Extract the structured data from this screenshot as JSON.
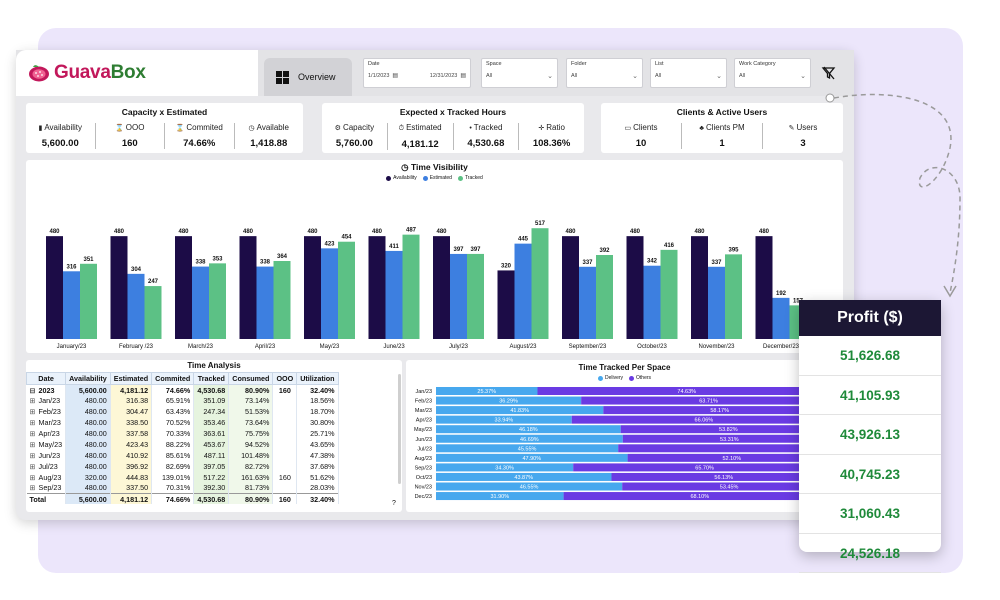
{
  "app": {
    "logo_prefix": "Guava",
    "logo_suffix": "Box",
    "tab_overview": "Overview"
  },
  "filters": {
    "date": {
      "label": "Date",
      "start": "1/1/2023",
      "end": "12/31/2023"
    },
    "space": {
      "label": "Space",
      "value": "All"
    },
    "folder": {
      "label": "Folder",
      "value": "All"
    },
    "list": {
      "label": "List",
      "value": "All"
    },
    "work_category": {
      "label": "Work Category",
      "value": "All"
    }
  },
  "capacity": {
    "title": "Capacity x Estimated",
    "kpis": [
      {
        "icon": "bar-chart-icon",
        "glyph": "▮",
        "label": "Availability",
        "value": "5,600.00"
      },
      {
        "icon": "hourglass-icon",
        "glyph": "⌛",
        "label": "OOO",
        "value": "160"
      },
      {
        "icon": "hourglass-icon",
        "glyph": "⌛",
        "label": "Commited",
        "value": "74.66%"
      },
      {
        "icon": "clock-icon",
        "glyph": "◷",
        "label": "Available",
        "value": "1,418.88"
      }
    ]
  },
  "expected": {
    "title": "Expected x Tracked Hours",
    "kpis": [
      {
        "icon": "gear-icon",
        "glyph": "⚙",
        "label": "Capacity",
        "value": "5,760.00"
      },
      {
        "icon": "stopwatch-icon",
        "glyph": "⏱",
        "label": "Estimated",
        "value": "4,181.12"
      },
      {
        "icon": "dot-icon",
        "glyph": "•",
        "label": "Tracked",
        "value": "4,530.68"
      },
      {
        "icon": "plus-icon",
        "glyph": "✛",
        "label": "Ratio",
        "value": "108.36%"
      }
    ]
  },
  "clients": {
    "title": "Clients & Active Users",
    "kpis": [
      {
        "icon": "cart-icon",
        "glyph": "▭",
        "label": "Clients",
        "value": "10"
      },
      {
        "icon": "person-icon",
        "glyph": "♣",
        "label": "Clients PM",
        "value": "1"
      },
      {
        "icon": "pin-icon",
        "glyph": "✎",
        "label": "Users",
        "value": "3"
      }
    ]
  },
  "time_visibility": {
    "title": "Time Visibility",
    "legend": [
      "Availability",
      "Estimated",
      "Tracked"
    ]
  },
  "chart_data": [
    {
      "type": "bar",
      "title": "Time Visibility",
      "legend_position": "top-center",
      "categories": [
        "January/23",
        "February /23",
        "March/23",
        "April/23",
        "May/23",
        "June/23",
        "July/23",
        "August/23",
        "September/23",
        "October/23",
        "November/23",
        "December/23"
      ],
      "series": [
        {
          "name": "Availability",
          "color": "#1c0c47",
          "values": [
            480,
            480,
            480,
            480,
            480,
            480,
            480,
            320,
            480,
            480,
            480,
            480
          ]
        },
        {
          "name": "Estimated",
          "color": "#3d7fe0",
          "values": [
            316,
            304,
            338,
            338,
            423,
            411,
            397,
            445,
            337,
            342,
            337,
            192
          ]
        },
        {
          "name": "Tracked",
          "color": "#5cc185",
          "values": [
            351,
            247,
            353,
            364,
            454,
            487,
            397,
            517,
            392,
            416,
            395,
            157
          ]
        }
      ],
      "ylim": [
        0,
        560
      ]
    },
    {
      "type": "bar",
      "orientation": "horizontal-stacked-100",
      "title": "Time Tracked Per Space",
      "legend_position": "top-center",
      "categories": [
        "Jan/23",
        "Feb/23",
        "Mar/23",
        "Apr/23",
        "May/23",
        "Jun/23",
        "Jul/23",
        "Aug/23",
        "Sep/23",
        "Oct/23",
        "Nov/23",
        "Dec/23"
      ],
      "series": [
        {
          "name": "Delivery",
          "color": "#47a8ee",
          "values": [
            25.37,
            36.29,
            41.83,
            33.94,
            46.18,
            46.69,
            45.55,
            47.9,
            34.3,
            43.87,
            46.55,
            31.9
          ]
        },
        {
          "name": "Others",
          "color": "#6a3be3",
          "values": [
            74.63,
            63.71,
            58.17,
            66.06,
            53.82,
            53.31,
            54.45,
            52.1,
            65.7,
            56.13,
            53.45,
            68.1
          ]
        }
      ],
      "labels_delivery": [
        "25.37%",
        "36.29%",
        "41.83%",
        "33.94%",
        "46.18%",
        "46.69%",
        "45.55%",
        "47.90%",
        "34.30%",
        "43.87%",
        "46.55%",
        "31.90%"
      ],
      "labels_others": [
        "74.63%",
        "63.71%",
        "58.17%",
        "66.06%",
        "53.82%",
        "53.31%",
        "",
        "52.10%",
        "65.70%",
        "56.13%",
        "53.45%",
        "68.10%"
      ]
    }
  ],
  "time_analysis": {
    "title": "Time Analysis",
    "columns": [
      "Date",
      "Availability",
      "Estimated",
      "Commited",
      "Tracked",
      "Consumed",
      "OOO",
      "Utilization"
    ],
    "rows": [
      {
        "date": "2023",
        "cells": [
          "5,600.00",
          "4,181.12",
          "74.66%",
          "4,530.68",
          "80.90%",
          "160",
          "32.40%"
        ],
        "bold": true,
        "expand": "⊟"
      },
      {
        "date": "Jan/23",
        "cells": [
          "480.00",
          "316.38",
          "65.91%",
          "351.09",
          "73.14%",
          "",
          "18.56%"
        ],
        "bold": false,
        "expand": "⊞"
      },
      {
        "date": "Feb/23",
        "cells": [
          "480.00",
          "304.47",
          "63.43%",
          "247.34",
          "51.53%",
          "",
          "18.70%"
        ],
        "bold": false,
        "expand": "⊞"
      },
      {
        "date": "Mar/23",
        "cells": [
          "480.00",
          "338.50",
          "70.52%",
          "353.46",
          "73.64%",
          "",
          "30.80%"
        ],
        "bold": false,
        "expand": "⊞"
      },
      {
        "date": "Apr/23",
        "cells": [
          "480.00",
          "337.58",
          "70.33%",
          "363.61",
          "75.75%",
          "",
          "25.71%"
        ],
        "bold": false,
        "expand": "⊞"
      },
      {
        "date": "May/23",
        "cells": [
          "480.00",
          "423.43",
          "88.22%",
          "453.67",
          "94.52%",
          "",
          "43.65%"
        ],
        "bold": false,
        "expand": "⊞"
      },
      {
        "date": "Jun/23",
        "cells": [
          "480.00",
          "410.92",
          "85.61%",
          "487.11",
          "101.48%",
          "",
          "47.38%"
        ],
        "bold": false,
        "expand": "⊞"
      },
      {
        "date": "Jul/23",
        "cells": [
          "480.00",
          "396.92",
          "82.69%",
          "397.05",
          "82.72%",
          "",
          "37.68%"
        ],
        "bold": false,
        "expand": "⊞"
      },
      {
        "date": "Aug/23",
        "cells": [
          "320.00",
          "444.83",
          "139.01%",
          "517.22",
          "161.63%",
          "160",
          "51.62%"
        ],
        "bold": false,
        "expand": "⊞"
      },
      {
        "date": "Sep/23",
        "cells": [
          "480.00",
          "337.50",
          "70.31%",
          "392.30",
          "81.73%",
          "",
          "28.03%"
        ],
        "bold": false,
        "expand": "⊞"
      }
    ],
    "total": {
      "date": "Total",
      "cells": [
        "5,600.00",
        "4,181.12",
        "74.66%",
        "4,530.68",
        "80.90%",
        "160",
        "32.40%"
      ]
    },
    "help": "?"
  },
  "time_tracked": {
    "title": "Time Tracked Per Space",
    "legend": [
      "Delivery",
      "Others"
    ]
  },
  "profit": {
    "title": "Profit ($)",
    "values": [
      "51,626.68",
      "41,105.93",
      "43,926.13",
      "40,745.23",
      "31,060.43",
      "24,526.18"
    ]
  },
  "colors": {
    "availability": "#1c0c47",
    "estimated": "#3d7fe0",
    "tracked": "#5cc185",
    "delivery": "#47a8ee",
    "others": "#6a3be3",
    "profit_green": "#1f8a3a",
    "profit_head": "#1c1734"
  }
}
